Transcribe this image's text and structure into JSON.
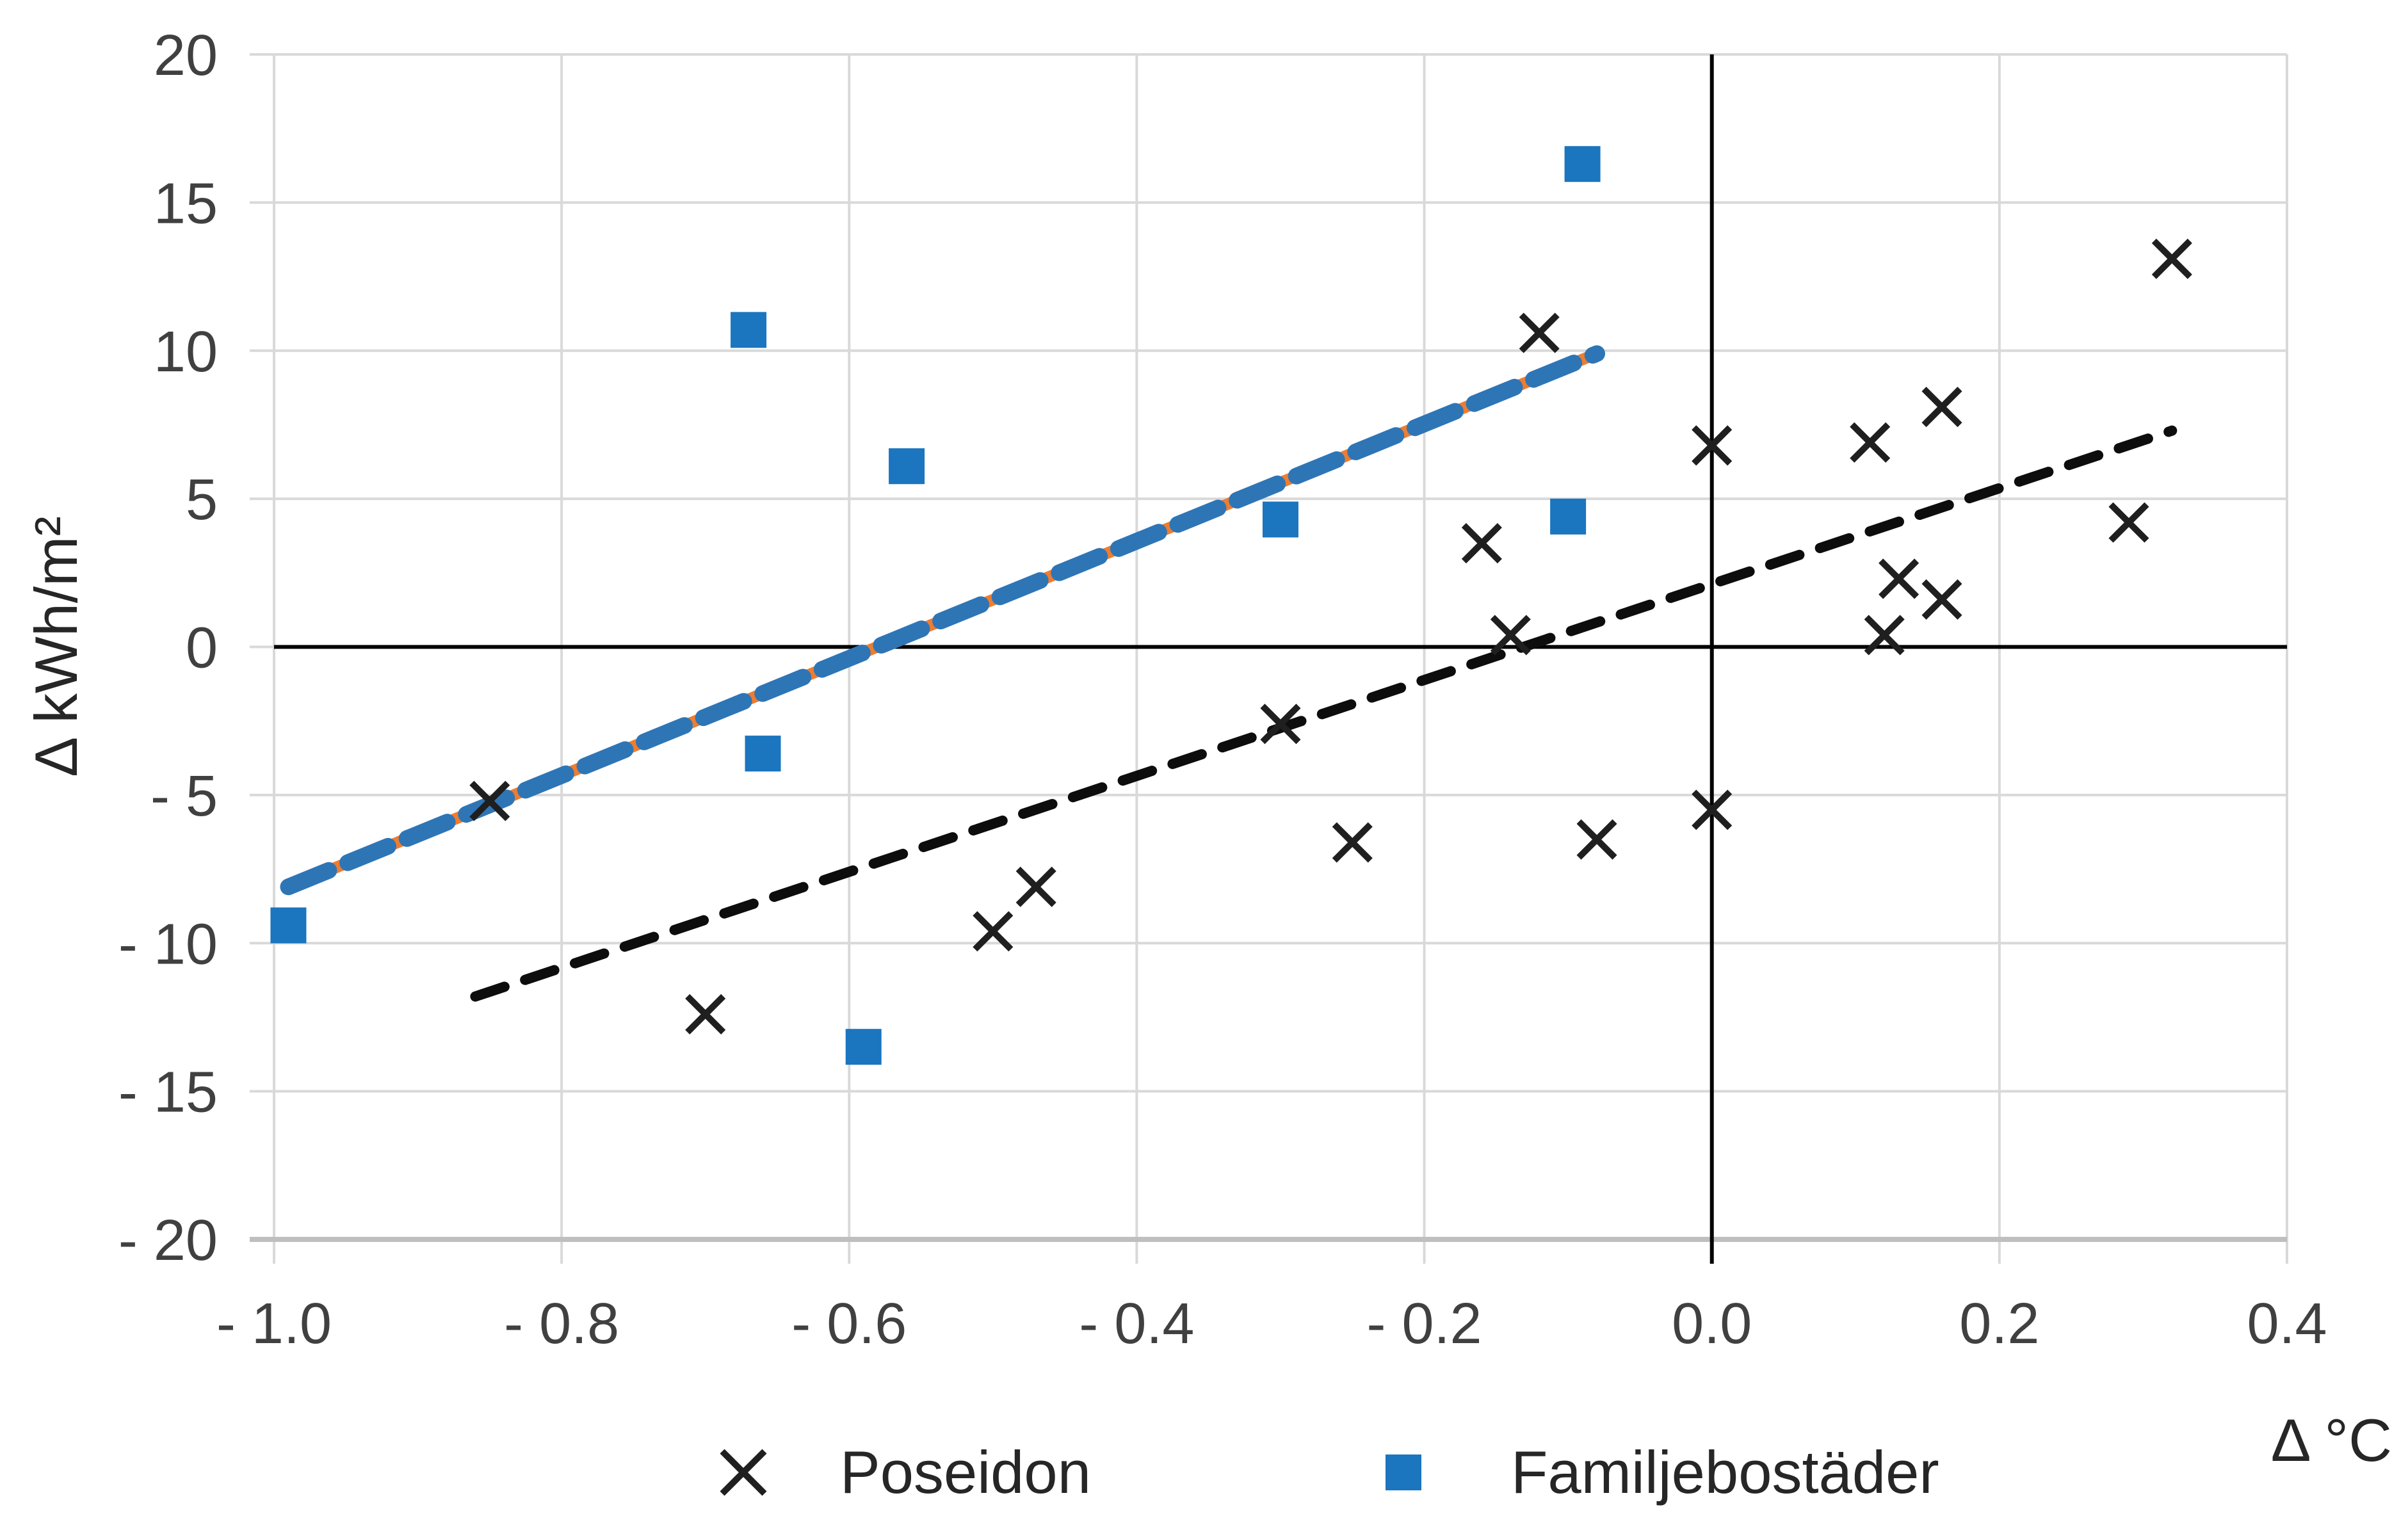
{
  "chart_data": {
    "type": "scatter",
    "title": "",
    "xlabel": "Δ °C",
    "ylabel": "Δ kWh/m²",
    "xlim": [
      -1.0,
      0.4
    ],
    "ylim": [
      -20,
      20
    ],
    "grid": true,
    "legend_position": "bottom",
    "x_tick_values": [
      -1.0,
      -0.8,
      -0.6,
      -0.4,
      -0.2,
      0.0,
      0.2,
      0.4
    ],
    "x_tick_labels": [
      "- 1.0",
      "- 0.8",
      "- 0.6",
      "- 0.4",
      "- 0.2",
      "0.0",
      "0.2",
      "0.4"
    ],
    "y_tick_values": [
      20,
      15,
      10,
      5,
      0,
      -5,
      -10,
      -15,
      -20
    ],
    "y_tick_labels": [
      "20",
      "15",
      "10",
      "5",
      "0",
      "- 5",
      "- 10",
      "- 15",
      "- 20"
    ],
    "colors": {
      "grid": "#D9D9D9",
      "axis_line": "#BFBFBF",
      "zero_axis": "#000000",
      "tick_text": "#404040",
      "poseidon": "#1f1f1f",
      "familjebostader_blue": "#1B75BF",
      "trendline_accent_orange": "#ED7D31"
    },
    "series": [
      {
        "name": "Poseidon",
        "marker": "x",
        "color": "#1f1f1f",
        "points": [
          [
            -0.85,
            -5.2
          ],
          [
            -0.7,
            -12.4
          ],
          [
            -0.5,
            -9.6
          ],
          [
            -0.47,
            -8.1
          ],
          [
            -0.3,
            -2.6
          ],
          [
            -0.25,
            -6.6
          ],
          [
            -0.16,
            3.5
          ],
          [
            -0.14,
            0.4
          ],
          [
            -0.12,
            10.6
          ],
          [
            -0.08,
            -6.5
          ],
          [
            0.0,
            6.8
          ],
          [
            0.0,
            -5.5
          ],
          [
            0.11,
            6.9
          ],
          [
            0.12,
            0.4
          ],
          [
            0.13,
            2.3
          ],
          [
            0.16,
            1.6
          ],
          [
            0.16,
            8.1
          ],
          [
            0.29,
            4.2
          ],
          [
            0.32,
            13.1
          ]
        ],
        "trendline": {
          "style": "dashed",
          "color": "#0d0d0d",
          "from": [
            -0.86,
            -11.8
          ],
          "to": [
            0.32,
            7.3
          ]
        }
      },
      {
        "name": "Familjebostäder",
        "marker": "square",
        "color": "#1B75BF",
        "points": [
          [
            -0.99,
            -9.4
          ],
          [
            -0.67,
            10.7
          ],
          [
            -0.66,
            -3.6
          ],
          [
            -0.59,
            -13.5
          ],
          [
            -0.56,
            6.1
          ],
          [
            -0.3,
            4.3
          ],
          [
            -0.1,
            4.4
          ],
          [
            -0.09,
            16.3
          ]
        ],
        "trendline": {
          "style": "dashed",
          "color": "#2E75B6",
          "accent_color": "#ED7D31",
          "from": [
            -0.99,
            -8.1
          ],
          "to": [
            -0.08,
            9.9
          ]
        }
      }
    ]
  }
}
